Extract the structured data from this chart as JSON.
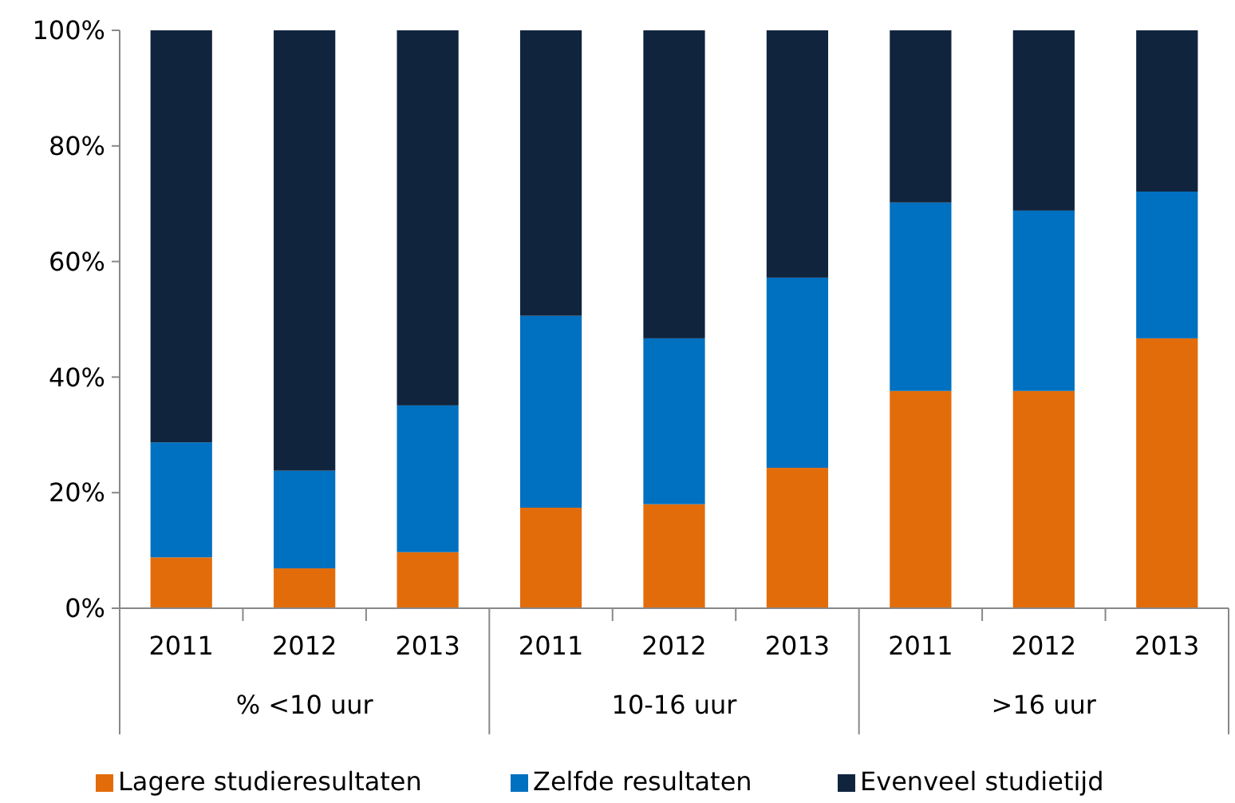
{
  "chart_data": {
    "type": "bar",
    "stacked": true,
    "categories": [
      "2011",
      "2012",
      "2013",
      "2011",
      "2012",
      "2013",
      "2011",
      "2012",
      "2013"
    ],
    "annotations": [
      "% <10 uur",
      "10-16 uur",
      ">16 uur"
    ],
    "series": [
      {
        "name": "Lagere studieresultaten",
        "color": "#e36c0a",
        "values": [
          8.8,
          6.9,
          9.7,
          17.4,
          18.0,
          24.3,
          37.6,
          37.6,
          46.7
        ]
      },
      {
        "name": "Zelfde resultaten",
        "color": "#0070c0",
        "values": [
          19.9,
          16.9,
          25.4,
          33.2,
          28.7,
          32.9,
          32.6,
          31.2,
          25.4
        ]
      },
      {
        "name": "Evenveel studietijd",
        "color": "#10243e",
        "values": [
          71.3,
          76.2,
          64.9,
          49.4,
          53.3,
          42.8,
          29.8,
          31.2,
          27.9
        ]
      }
    ],
    "ylim": [
      0,
      100
    ],
    "yticks": [
      {
        "value": 0,
        "label": "0%"
      },
      {
        "value": 20,
        "label": "20%"
      },
      {
        "value": 40,
        "label": "40%"
      },
      {
        "value": 60,
        "label": "60%"
      },
      {
        "value": 80,
        "label": "80%"
      },
      {
        "value": 100,
        "label": "100%"
      }
    ],
    "grid": false,
    "legend": "bottom"
  }
}
